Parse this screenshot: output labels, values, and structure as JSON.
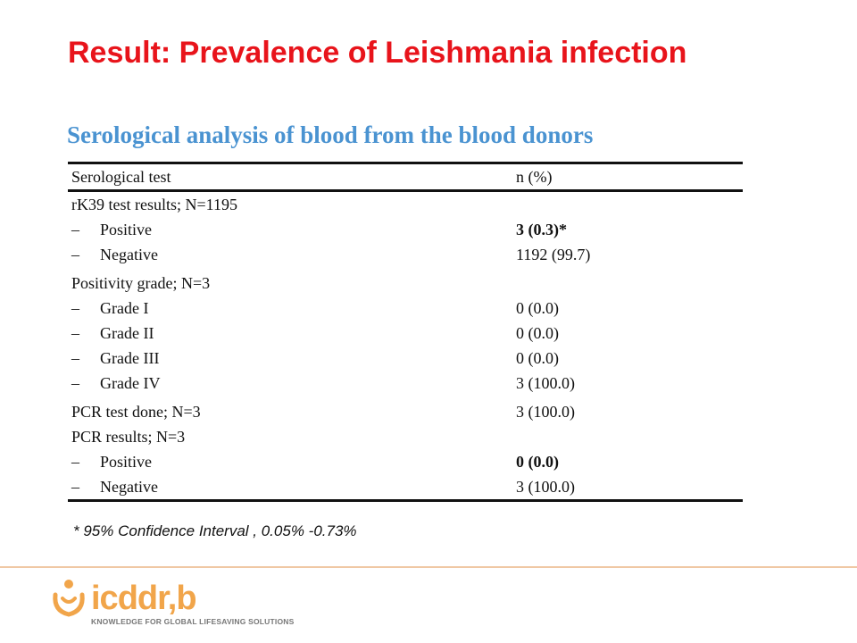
{
  "title": "Result: Prevalence of Leishmania infection",
  "subtitle": "Serological analysis of blood from the blood donors",
  "table": {
    "headers": [
      "Serological test",
      "n (%)"
    ],
    "rows": [
      {
        "dash": "",
        "label": "rK39 test results; N=1195",
        "value": "",
        "bold": false,
        "group": false
      },
      {
        "dash": "–",
        "label": "Positive",
        "value": "3 (0.3)*",
        "bold": true,
        "group": false
      },
      {
        "dash": "–",
        "label": "Negative",
        "value": "1192 (99.7)",
        "bold": false,
        "group": false
      },
      {
        "dash": "",
        "label": "Positivity grade; N=3",
        "value": "",
        "bold": false,
        "group": true
      },
      {
        "dash": "–",
        "label": "Grade I",
        "value": "0 (0.0)",
        "bold": false,
        "group": false
      },
      {
        "dash": "–",
        "label": "Grade II",
        "value": "0 (0.0)",
        "bold": false,
        "group": false
      },
      {
        "dash": "–",
        "label": "Grade III",
        "value": "0 (0.0)",
        "bold": false,
        "group": false
      },
      {
        "dash": "–",
        "label": "Grade IV",
        "value": "3 (100.0)",
        "bold": false,
        "group": false
      },
      {
        "dash": "",
        "label": "PCR test done; N=3",
        "value": "3 (100.0)",
        "bold": false,
        "group": true
      },
      {
        "dash": "",
        "label": "PCR results; N=3",
        "value": "",
        "bold": false,
        "group": false
      },
      {
        "dash": "–",
        "label": "Positive",
        "value": "0 (0.0)",
        "bold": true,
        "group": false
      },
      {
        "dash": "–",
        "label": "Negative",
        "value": "3 (100.0)",
        "bold": false,
        "group": false
      }
    ]
  },
  "footnote": "* 95% Confidence Interval , 0.05% -0.73%",
  "logo": {
    "name": "icddr,b",
    "tagline": "KNOWLEDGE FOR GLOBAL LIFESAVING SOLUTIONS",
    "icon": "icddrb-logo-icon"
  },
  "colors": {
    "title": "#e8141b",
    "subtitle": "#4a93d1",
    "logo": "#f1a54a",
    "divider": "#f0c8a4"
  }
}
